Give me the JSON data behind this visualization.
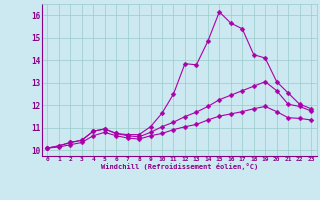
{
  "background_color": "#cce8f0",
  "plot_bg_color": "#cce8f0",
  "line_color": "#aa00aa",
  "grid_color": "#99cccc",
  "text_color": "#880088",
  "xlabel": "Windchill (Refroidissement éolien,°C)",
  "xlim": [
    -0.5,
    23.5
  ],
  "ylim": [
    9.75,
    16.5
  ],
  "xticks": [
    0,
    1,
    2,
    3,
    4,
    5,
    6,
    7,
    8,
    9,
    10,
    11,
    12,
    13,
    14,
    15,
    16,
    17,
    18,
    19,
    20,
    21,
    22,
    23
  ],
  "yticks": [
    10,
    11,
    12,
    13,
    14,
    15,
    16
  ],
  "line1_y": [
    10.1,
    10.2,
    10.35,
    10.45,
    10.85,
    10.95,
    10.75,
    10.7,
    10.7,
    11.05,
    11.65,
    12.5,
    13.85,
    13.8,
    14.85,
    16.15,
    15.65,
    15.4,
    14.25,
    14.1,
    13.05,
    12.55,
    12.05,
    11.85
  ],
  "line2_y": [
    10.1,
    10.2,
    10.35,
    10.45,
    10.85,
    10.95,
    10.75,
    10.65,
    10.6,
    10.8,
    11.05,
    11.25,
    11.5,
    11.7,
    11.95,
    12.25,
    12.45,
    12.65,
    12.85,
    13.05,
    12.65,
    12.05,
    11.95,
    11.75
  ],
  "line3_y": [
    10.1,
    10.15,
    10.25,
    10.35,
    10.65,
    10.8,
    10.65,
    10.55,
    10.5,
    10.65,
    10.75,
    10.92,
    11.05,
    11.15,
    11.35,
    11.52,
    11.62,
    11.72,
    11.85,
    11.95,
    11.72,
    11.45,
    11.42,
    11.35
  ]
}
